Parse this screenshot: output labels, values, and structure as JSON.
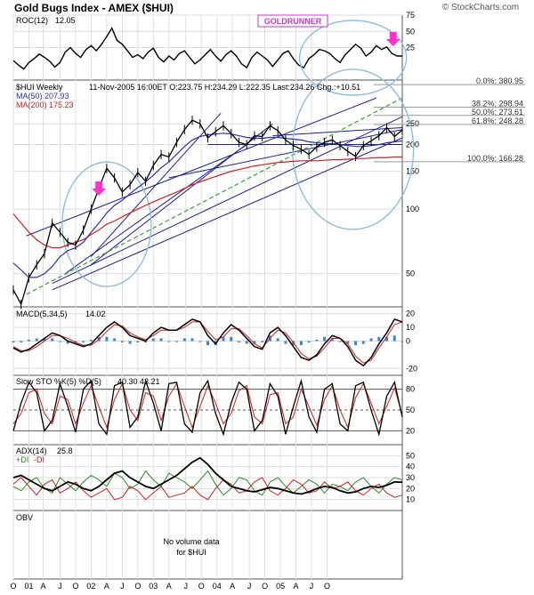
{
  "header": {
    "title": "Gold Bugs Index - AMEX ($HUI)",
    "credit": "© StockCharts.com",
    "tag": "GOLDRUNNER"
  },
  "colors": {
    "price": "#000000",
    "ma50": "#3030b0",
    "ma200": "#cc2020",
    "trend": "#20208a",
    "fib": "#999999",
    "circle": "#8fbcdf",
    "green_dash": "#3aa03a",
    "arrow": "#ff33cc",
    "macd_hist": "#3c86c8",
    "sto_d": "#cc2020",
    "plus_di": "#2a8a2a",
    "minus_di": "#cc2020"
  },
  "chart_data": [
    {
      "type": "line",
      "panel": "ROC",
      "title": "ROC(12)",
      "value_label": "12.05",
      "ylim": [
        -25,
        75
      ],
      "ticks": [
        "75",
        "50",
        "25"
      ],
      "x": [
        0,
        4,
        8,
        12,
        16,
        20,
        24,
        28,
        32,
        36,
        40,
        44,
        48,
        52,
        56,
        60,
        64,
        68,
        72,
        76,
        80,
        84,
        88,
        92,
        96,
        100,
        104,
        108,
        112,
        116,
        120,
        124,
        128,
        132,
        136,
        140,
        144,
        148,
        152,
        156,
        160,
        164,
        168,
        172,
        176,
        180,
        184,
        188,
        192,
        196,
        200,
        204,
        208,
        212,
        216,
        220,
        224,
        228,
        232,
        236,
        240,
        244,
        248,
        252,
        256,
        260,
        264,
        268,
        272,
        276,
        280,
        284,
        288,
        292,
        296,
        300
      ],
      "values": [
        5,
        -2,
        -8,
        2,
        8,
        15,
        10,
        4,
        -5,
        2,
        18,
        25,
        16,
        10,
        22,
        28,
        20,
        30,
        42,
        55,
        36,
        30,
        20,
        10,
        14,
        8,
        18,
        24,
        10,
        3,
        12,
        6,
        16,
        20,
        10,
        0,
        6,
        14,
        22,
        12,
        4,
        14,
        20,
        12,
        0,
        -6,
        10,
        18,
        12,
        6,
        -4,
        6,
        16,
        20,
        8,
        -2,
        -6,
        8,
        14,
        22,
        20,
        16,
        8,
        2,
        14,
        22,
        30,
        24,
        12,
        18,
        28,
        22,
        26,
        16,
        12,
        12
      ]
    },
    {
      "type": "line",
      "panel": "Price",
      "title": "$HUI Weekly",
      "info": "11-Nov-2005 16:00ET  O:223.75  H:234.29  L:222.35  Last:234.26  Chg.:+10.51",
      "y_scale": "log",
      "ylim": [
        35,
        400
      ],
      "ticks": [
        "250",
        "200",
        "150",
        "100",
        "50"
      ],
      "fib_levels": [
        {
          "label": "0.0%: 380.95",
          "value": 380.95
        },
        {
          "label": "38.2%: 298.94",
          "value": 298.94
        },
        {
          "label": "50.0%: 273.61",
          "value": 273.61
        },
        {
          "label": "61.8%: 248.28",
          "value": 248.28
        },
        {
          "label": "100.0%: 166.28",
          "value": 166.28
        }
      ],
      "x": [
        0,
        6,
        12,
        18,
        24,
        30,
        36,
        42,
        48,
        54,
        60,
        66,
        72,
        78,
        84,
        90,
        96,
        102,
        108,
        114,
        120,
        126,
        132,
        138,
        144,
        150,
        156,
        162,
        168,
        174,
        180,
        186,
        192,
        198,
        204,
        210,
        216,
        222,
        228,
        234,
        240,
        246,
        252,
        258,
        264,
        270,
        276,
        282,
        288,
        294,
        300
      ],
      "series": [
        {
          "name": "$HUI Weekly",
          "values": [
            42,
            36,
            48,
            55,
            62,
            86,
            78,
            70,
            68,
            80,
            100,
            125,
            155,
            140,
            120,
            130,
            148,
            135,
            160,
            180,
            175,
            205,
            235,
            260,
            250,
            215,
            230,
            245,
            225,
            205,
            200,
            220,
            218,
            245,
            232,
            210,
            198,
            190,
            180,
            195,
            205,
            210,
            198,
            186,
            176,
            198,
            208,
            220,
            240,
            218,
            234
          ]
        },
        {
          "name": "MA(50) 207.93",
          "values": [
            56,
            52,
            48,
            48,
            50,
            54,
            60,
            64,
            66,
            70,
            78,
            86,
            96,
            104,
            110,
            118,
            126,
            134,
            144,
            156,
            166,
            180,
            196,
            210,
            218,
            222,
            224,
            226,
            224,
            220,
            216,
            214,
            214,
            216,
            216,
            214,
            212,
            210,
            206,
            204,
            202,
            202,
            200,
            198,
            196,
            196,
            198,
            200,
            204,
            206,
            208
          ]
        },
        {
          "name": "MA(200) 175.23",
          "values": [
            95,
            86,
            78,
            72,
            68,
            66,
            66,
            68,
            70,
            72,
            76,
            80,
            85,
            88,
            92,
            96,
            100,
            104,
            108,
            112,
            116,
            120,
            125,
            130,
            134,
            138,
            142,
            146,
            150,
            153,
            156,
            159,
            161,
            163,
            165,
            166,
            167,
            168,
            168,
            168,
            169,
            170,
            170,
            171,
            172,
            172,
            173,
            174,
            174,
            175,
            175
          ]
        }
      ],
      "annotations": [
        "GOLDRUNNER"
      ]
    },
    {
      "type": "line",
      "panel": "MACD",
      "title": "MACD(5,34,5)",
      "value_label": "14.02",
      "ylim": [
        -25,
        25
      ],
      "ticks": [
        "20",
        "10",
        "0",
        "-20"
      ],
      "x": [
        0,
        6,
        12,
        18,
        24,
        30,
        36,
        42,
        48,
        54,
        60,
        66,
        72,
        78,
        84,
        90,
        96,
        102,
        108,
        114,
        120,
        126,
        132,
        138,
        144,
        150,
        156,
        162,
        168,
        174,
        180,
        186,
        192,
        198,
        204,
        210,
        216,
        222,
        228,
        234,
        240,
        246,
        252,
        258,
        264,
        270,
        276,
        282,
        288,
        294,
        300
      ],
      "series": [
        {
          "name": "MACD",
          "values": [
            -5,
            -8,
            -6,
            -2,
            2,
            6,
            4,
            0,
            -2,
            -4,
            -2,
            4,
            10,
            14,
            10,
            4,
            2,
            0,
            6,
            10,
            8,
            8,
            12,
            16,
            14,
            4,
            -2,
            6,
            12,
            8,
            2,
            -4,
            -6,
            6,
            10,
            4,
            -4,
            -12,
            -14,
            -10,
            -2,
            4,
            2,
            -4,
            -14,
            -18,
            -12,
            -2,
            6,
            16,
            14
          ]
        },
        {
          "name": "Signal",
          "values": [
            -4,
            -7,
            -7,
            -4,
            0,
            4,
            4,
            2,
            -1,
            -3,
            -3,
            1,
            7,
            12,
            11,
            6,
            3,
            1,
            4,
            8,
            8,
            8,
            10,
            14,
            14,
            7,
            1,
            3,
            9,
            9,
            4,
            -2,
            -5,
            2,
            8,
            6,
            -1,
            -9,
            -13,
            -11,
            -5,
            2,
            2,
            -2,
            -11,
            -16,
            -14,
            -5,
            3,
            12,
            14
          ]
        }
      ]
    },
    {
      "type": "line",
      "panel": "Slow STO",
      "title": "Slow STO %K(5) %D(5)",
      "value_label": "40.30  43.21",
      "ylim": [
        0,
        100
      ],
      "ticks": [
        "80",
        "50",
        "20"
      ],
      "x": [
        0,
        6,
        12,
        18,
        24,
        30,
        36,
        42,
        48,
        54,
        60,
        66,
        72,
        78,
        84,
        90,
        96,
        102,
        108,
        114,
        120,
        126,
        132,
        138,
        144,
        150,
        156,
        162,
        168,
        174,
        180,
        186,
        192,
        198,
        204,
        210,
        216,
        222,
        228,
        234,
        240,
        246,
        252,
        258,
        264,
        270,
        276,
        282,
        288,
        294,
        300
      ],
      "series": [
        {
          "name": "%K",
          "values": [
            20,
            60,
            90,
            75,
            20,
            35,
            88,
            55,
            18,
            80,
            92,
            30,
            15,
            85,
            90,
            25,
            40,
            92,
            60,
            20,
            88,
            90,
            30,
            18,
            75,
            92,
            45,
            15,
            60,
            90,
            80,
            20,
            35,
            88,
            70,
            15,
            55,
            92,
            40,
            18,
            80,
            88,
            30,
            20,
            85,
            90,
            50,
            15,
            70,
            90,
            40
          ]
        },
        {
          "name": "%D",
          "values": [
            30,
            45,
            75,
            80,
            45,
            30,
            70,
            65,
            30,
            60,
            85,
            55,
            25,
            65,
            88,
            50,
            35,
            75,
            70,
            35,
            70,
            88,
            55,
            25,
            55,
            85,
            60,
            30,
            45,
            78,
            85,
            40,
            30,
            72,
            75,
            30,
            40,
            80,
            55,
            28,
            65,
            85,
            50,
            25,
            68,
            88,
            60,
            30,
            55,
            82,
            43
          ]
        }
      ]
    },
    {
      "type": "line",
      "panel": "ADX",
      "title": "ADX(14)",
      "value_label": "25.8",
      "legend": [
        "+DI",
        "-DI"
      ],
      "ylim": [
        0,
        60
      ],
      "ticks": [
        "50",
        "40",
        "30",
        "20",
        "10"
      ],
      "x": [
        0,
        6,
        12,
        18,
        24,
        30,
        36,
        42,
        48,
        54,
        60,
        66,
        72,
        78,
        84,
        90,
        96,
        102,
        108,
        114,
        120,
        126,
        132,
        138,
        144,
        150,
        156,
        162,
        168,
        174,
        180,
        186,
        192,
        198,
        204,
        210,
        216,
        222,
        228,
        234,
        240,
        246,
        252,
        258,
        264,
        270,
        276,
        282,
        288,
        294,
        300
      ],
      "series": [
        {
          "name": "ADX",
          "values": [
            30,
            32,
            28,
            24,
            20,
            18,
            22,
            26,
            24,
            20,
            18,
            22,
            28,
            34,
            36,
            30,
            26,
            22,
            20,
            24,
            28,
            32,
            38,
            44,
            48,
            42,
            34,
            28,
            22,
            20,
            18,
            17,
            19,
            21,
            20,
            18,
            16,
            15,
            17,
            20,
            22,
            21,
            18,
            16,
            17,
            20,
            22,
            21,
            23,
            26,
            25.8
          ]
        },
        {
          "name": "+DI",
          "values": [
            22,
            18,
            26,
            30,
            20,
            16,
            30,
            24,
            18,
            26,
            32,
            28,
            22,
            34,
            30,
            20,
            24,
            36,
            28,
            22,
            34,
            30,
            26,
            20,
            28,
            36,
            24,
            14,
            20,
            30,
            28,
            18,
            14,
            26,
            30,
            22,
            16,
            22,
            28,
            24,
            16,
            24,
            22,
            18,
            26,
            30,
            22,
            16,
            24,
            30,
            28
          ]
        },
        {
          "name": "-DI",
          "values": [
            24,
            30,
            22,
            14,
            24,
            28,
            16,
            20,
            26,
            18,
            12,
            16,
            20,
            10,
            12,
            22,
            18,
            10,
            16,
            22,
            12,
            14,
            16,
            22,
            14,
            10,
            20,
            28,
            24,
            16,
            18,
            26,
            30,
            18,
            14,
            20,
            28,
            24,
            16,
            18,
            26,
            20,
            22,
            26,
            18,
            14,
            20,
            24,
            16,
            12,
            14
          ]
        }
      ]
    },
    {
      "type": "table",
      "panel": "OBV",
      "title": "OBV",
      "message": [
        "No volume data",
        "for $HUI"
      ]
    }
  ],
  "x_axis": {
    "ticks": [
      {
        "label": "O",
        "x": 0
      },
      {
        "label": "01",
        "x": 12
      },
      {
        "label": "A",
        "x": 23
      },
      {
        "label": "J",
        "x": 36
      },
      {
        "label": "O",
        "x": 48
      },
      {
        "label": "02",
        "x": 60
      },
      {
        "label": "A",
        "x": 72
      },
      {
        "label": "J",
        "x": 84
      },
      {
        "label": "O",
        "x": 96
      },
      {
        "label": "03",
        "x": 108
      },
      {
        "label": "A",
        "x": 120
      },
      {
        "label": "J",
        "x": 133
      },
      {
        "label": "O",
        "x": 145
      },
      {
        "label": "04",
        "x": 157
      },
      {
        "label": "A",
        "x": 169
      },
      {
        "label": "J",
        "x": 182
      },
      {
        "label": "O",
        "x": 194
      },
      {
        "label": "05",
        "x": 206
      },
      {
        "label": "A",
        "x": 218
      },
      {
        "label": "J",
        "x": 230
      },
      {
        "label": "O",
        "x": 242
      }
    ]
  }
}
